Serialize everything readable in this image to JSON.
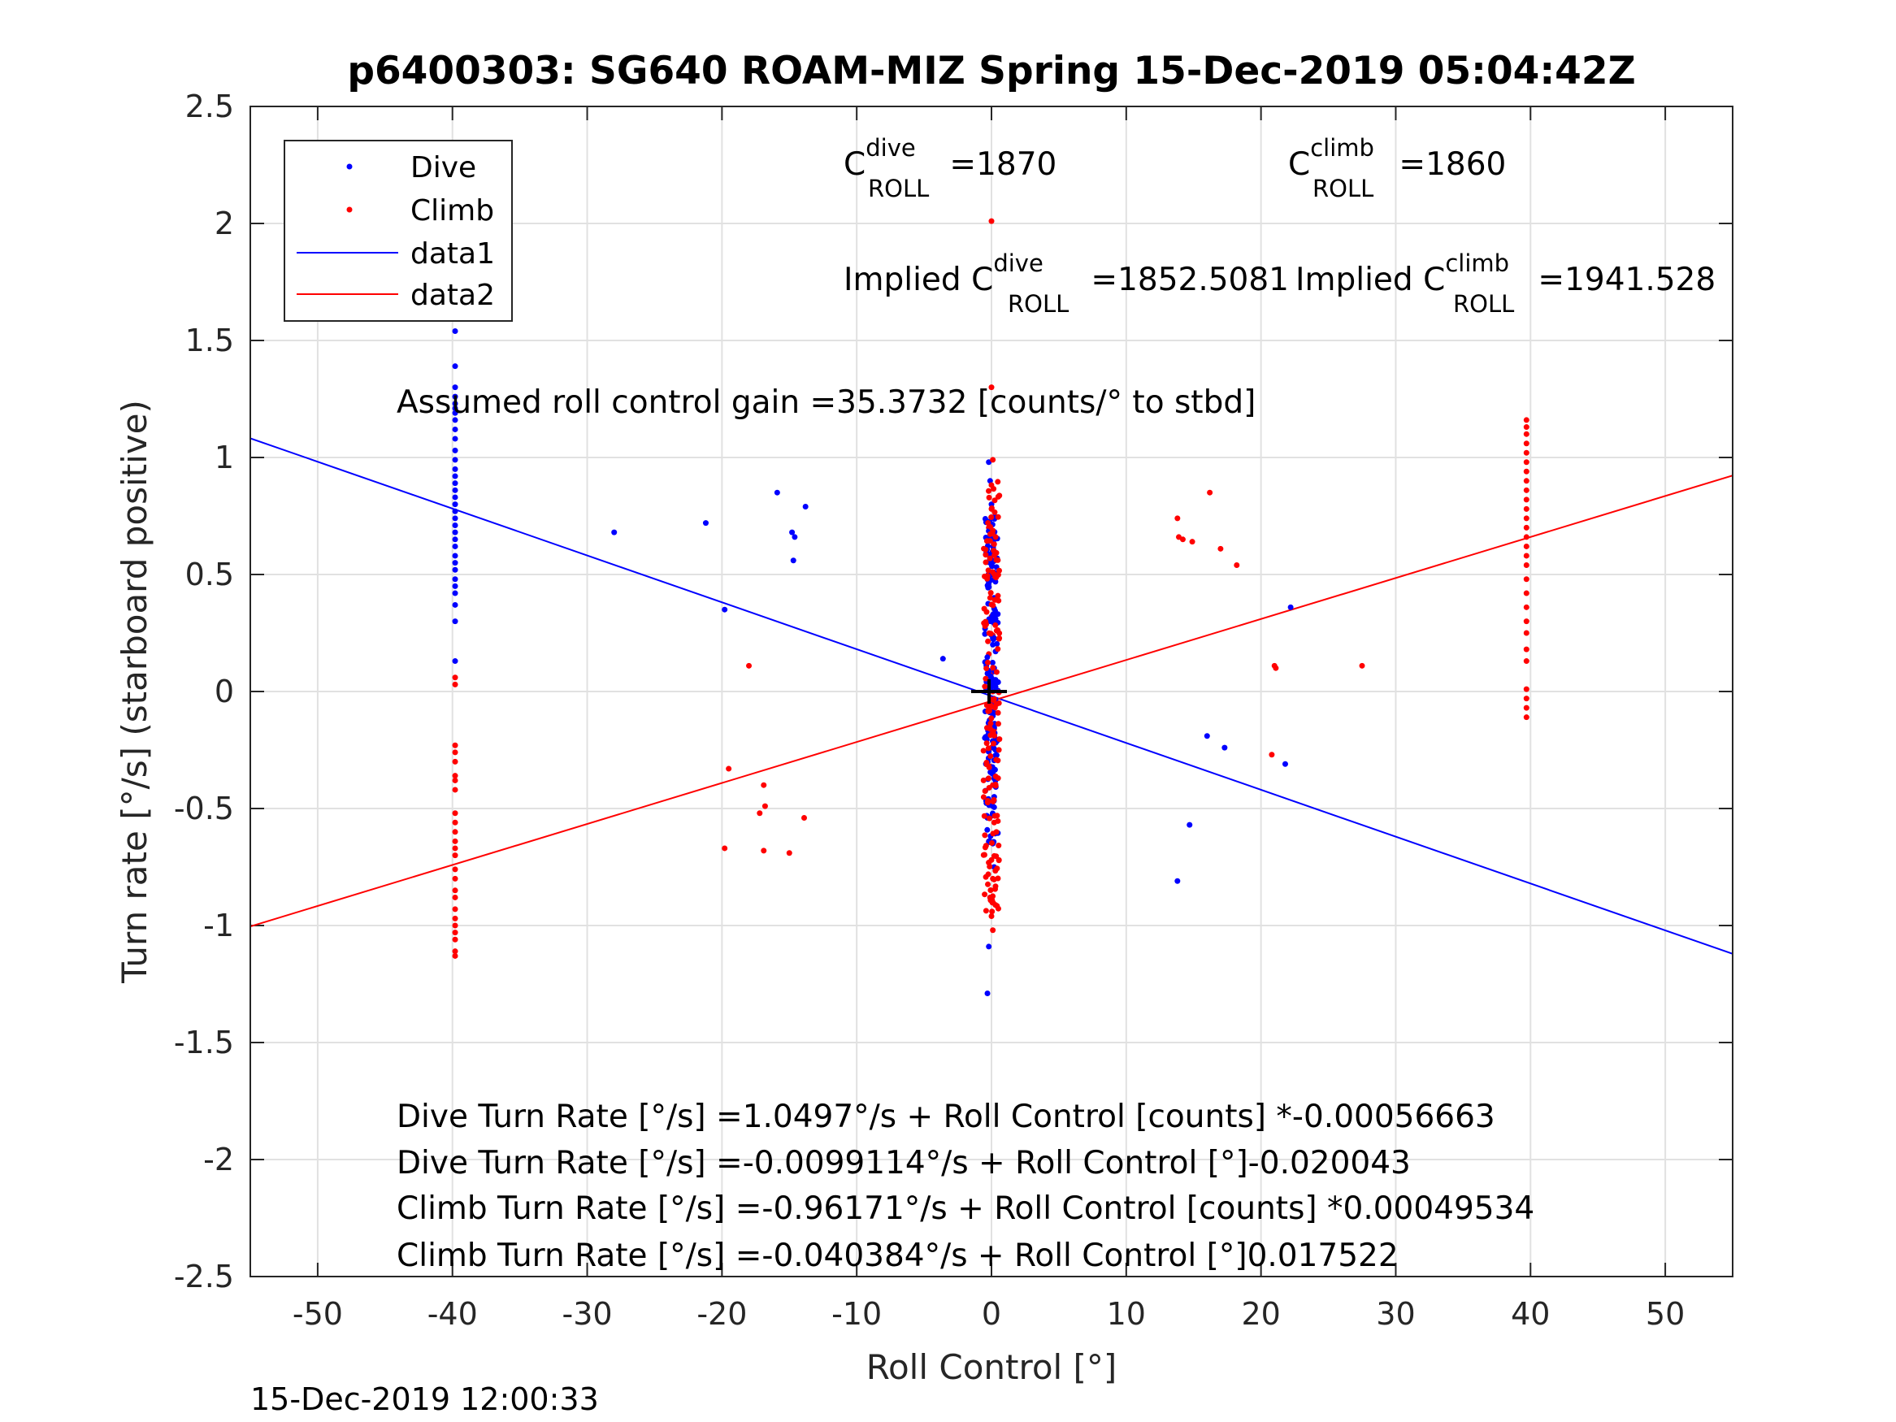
{
  "chart_data": {
    "type": "scatter",
    "title": "p6400303: SG640 ROAM-MIZ Spring 15-Dec-2019 05:04:42Z",
    "xlabel": "Roll Control [°]",
    "ylabel": "Turn rate [°/s] (starboard positive)",
    "xlim": [
      -55,
      55
    ],
    "ylim": [
      -2.5,
      2.5
    ],
    "xticks": [
      -50,
      -40,
      -30,
      -20,
      -10,
      0,
      10,
      20,
      30,
      40,
      50
    ],
    "xtick_labels": [
      "-50",
      "-40",
      "-30",
      "-20",
      "-10",
      "0",
      "10",
      "20",
      "30",
      "40",
      "50"
    ],
    "yticks": [
      -2.5,
      -2,
      -1.5,
      -1,
      -0.5,
      0,
      0.5,
      1,
      1.5,
      2,
      2.5
    ],
    "ytick_labels": [
      "-2.5",
      "-2",
      "-1.5",
      "-1",
      "-0.5",
      "0",
      "0.5",
      "1",
      "1.5",
      "2",
      "2.5"
    ],
    "grid": true,
    "legend_position": "top-left",
    "legend": [
      "Dive",
      "Climb",
      "data1",
      "data2"
    ],
    "colors": {
      "dive": "#0000ff",
      "climb": "#ff0000",
      "marker": "#000000"
    },
    "series": [
      {
        "name": "Dive",
        "kind": "points",
        "points": [
          [
            -39.8,
            1.54
          ],
          [
            -39.8,
            1.39
          ],
          [
            -39.8,
            1.3
          ],
          [
            -39.8,
            1.26
          ],
          [
            -39.8,
            1.23
          ],
          [
            -39.8,
            1.21
          ],
          [
            -39.8,
            1.19
          ],
          [
            -39.8,
            1.16
          ],
          [
            -39.8,
            1.12
          ],
          [
            -39.8,
            1.08
          ],
          [
            -39.8,
            1.03
          ],
          [
            -39.8,
            0.99
          ],
          [
            -39.8,
            0.95
          ],
          [
            -39.8,
            0.92
          ],
          [
            -39.8,
            0.89
          ],
          [
            -39.8,
            0.86
          ],
          [
            -39.8,
            0.83
          ],
          [
            -39.8,
            0.8
          ],
          [
            -39.8,
            0.77
          ],
          [
            -39.8,
            0.74
          ],
          [
            -39.8,
            0.71
          ],
          [
            -39.8,
            0.68
          ],
          [
            -39.8,
            0.65
          ],
          [
            -39.8,
            0.62
          ],
          [
            -39.8,
            0.58
          ],
          [
            -39.8,
            0.55
          ],
          [
            -39.8,
            0.52
          ],
          [
            -39.8,
            0.48
          ],
          [
            -39.8,
            0.45
          ],
          [
            -39.8,
            0.42
          ],
          [
            -39.8,
            0.37
          ],
          [
            -39.8,
            0.3
          ],
          [
            -39.8,
            0.13
          ],
          [
            -28.0,
            0.68
          ],
          [
            -21.2,
            0.72
          ],
          [
            -19.8,
            0.35
          ],
          [
            -15.9,
            0.85
          ],
          [
            -14.8,
            0.68
          ],
          [
            -14.6,
            0.66
          ],
          [
            -14.7,
            0.56
          ],
          [
            -13.8,
            0.79
          ],
          [
            -3.6,
            0.14
          ],
          [
            13.8,
            -0.81
          ],
          [
            14.7,
            -0.57
          ],
          [
            16.0,
            -0.19
          ],
          [
            17.3,
            -0.24
          ],
          [
            21.8,
            -0.31
          ],
          [
            22.2,
            0.36
          ],
          [
            -0.2,
            0.98
          ],
          [
            -0.1,
            0.9
          ],
          [
            0.0,
            0.8
          ],
          [
            -0.1,
            0.7
          ],
          [
            0.1,
            0.6
          ],
          [
            0.0,
            0.5
          ],
          [
            0.2,
            0.4
          ],
          [
            -0.1,
            0.3
          ],
          [
            0.1,
            0.2
          ],
          [
            0.2,
            0.1
          ],
          [
            0.3,
            0.05
          ],
          [
            0.0,
            -0.05
          ],
          [
            -0.2,
            -0.15
          ],
          [
            0.3,
            -0.25
          ],
          [
            0.1,
            -0.35
          ],
          [
            0.2,
            -0.45
          ],
          [
            -0.3,
            -0.54
          ],
          [
            0.1,
            -0.65
          ],
          [
            0.2,
            -0.75
          ],
          [
            -0.1,
            -0.88
          ],
          [
            -0.2,
            -1.09
          ],
          [
            -0.3,
            -1.29
          ]
        ]
      },
      {
        "name": "Climb",
        "kind": "points",
        "points": [
          [
            -39.8,
            0.06
          ],
          [
            -39.8,
            0.03
          ],
          [
            -39.8,
            -0.23
          ],
          [
            -39.8,
            -0.26
          ],
          [
            -39.8,
            -0.3
          ],
          [
            -39.8,
            -0.36
          ],
          [
            -39.8,
            -0.38
          ],
          [
            -39.8,
            -0.42
          ],
          [
            -39.8,
            -0.52
          ],
          [
            -39.8,
            -0.56
          ],
          [
            -39.8,
            -0.6
          ],
          [
            -39.8,
            -0.64
          ],
          [
            -39.8,
            -0.67
          ],
          [
            -39.8,
            -0.7
          ],
          [
            -39.8,
            -0.76
          ],
          [
            -39.8,
            -0.8
          ],
          [
            -39.8,
            -0.85
          ],
          [
            -39.8,
            -0.88
          ],
          [
            -39.8,
            -0.93
          ],
          [
            -39.8,
            -0.97
          ],
          [
            -39.8,
            -1.0
          ],
          [
            -39.8,
            -1.03
          ],
          [
            -39.8,
            -1.06
          ],
          [
            -39.8,
            -1.11
          ],
          [
            -39.8,
            -1.13
          ],
          [
            -18.0,
            0.11
          ],
          [
            -19.8,
            -0.67
          ],
          [
            -19.5,
            -0.33
          ],
          [
            -17.2,
            -0.52
          ],
          [
            -16.8,
            -0.49
          ],
          [
            -16.9,
            -0.4
          ],
          [
            -16.9,
            -0.68
          ],
          [
            -15.0,
            -0.69
          ],
          [
            -13.9,
            -0.54
          ],
          [
            13.8,
            0.74
          ],
          [
            13.9,
            0.66
          ],
          [
            14.2,
            0.65
          ],
          [
            14.9,
            0.64
          ],
          [
            16.2,
            0.85
          ],
          [
            17.0,
            0.61
          ],
          [
            18.2,
            0.54
          ],
          [
            20.8,
            -0.27
          ],
          [
            21.0,
            0.11
          ],
          [
            21.1,
            0.1
          ],
          [
            27.5,
            0.11
          ],
          [
            39.7,
            1.16
          ],
          [
            39.7,
            1.13
          ],
          [
            39.7,
            1.1
          ],
          [
            39.7,
            1.06
          ],
          [
            39.7,
            1.02
          ],
          [
            39.7,
            0.98
          ],
          [
            39.7,
            0.94
          ],
          [
            39.7,
            0.9
          ],
          [
            39.7,
            0.86
          ],
          [
            39.7,
            0.82
          ],
          [
            39.7,
            0.78
          ],
          [
            39.7,
            0.74
          ],
          [
            39.7,
            0.7
          ],
          [
            39.7,
            0.66
          ],
          [
            39.7,
            0.62
          ],
          [
            39.7,
            0.58
          ],
          [
            39.7,
            0.54
          ],
          [
            39.7,
            0.48
          ],
          [
            39.7,
            0.42
          ],
          [
            39.7,
            0.36
          ],
          [
            39.7,
            0.3
          ],
          [
            39.7,
            0.25
          ],
          [
            39.7,
            0.18
          ],
          [
            39.7,
            0.13
          ],
          [
            39.7,
            0.01
          ],
          [
            39.7,
            -0.03
          ],
          [
            39.7,
            -0.07
          ],
          [
            39.7,
            -0.11
          ],
          [
            0.0,
            2.01
          ],
          [
            0.0,
            1.3
          ],
          [
            0.1,
            0.99
          ],
          [
            0.0,
            0.78
          ],
          [
            -0.2,
            0.7
          ],
          [
            0.1,
            0.62
          ],
          [
            -0.1,
            0.55
          ],
          [
            0.2,
            0.48
          ],
          [
            -0.1,
            0.4
          ],
          [
            0.0,
            0.32
          ],
          [
            0.1,
            0.24
          ],
          [
            -0.2,
            0.16
          ],
          [
            0.0,
            0.08
          ],
          [
            0.1,
            0.0
          ],
          [
            -0.1,
            -0.08
          ],
          [
            0.2,
            -0.16
          ],
          [
            0.0,
            -0.24
          ],
          [
            -0.1,
            -0.32
          ],
          [
            0.1,
            -0.4
          ],
          [
            0.0,
            -0.48
          ],
          [
            0.2,
            -0.56
          ],
          [
            -0.2,
            -0.64
          ],
          [
            0.0,
            -0.72
          ],
          [
            0.1,
            -0.8
          ],
          [
            -0.1,
            -0.88
          ],
          [
            0.0,
            -0.96
          ],
          [
            0.1,
            -1.02
          ]
        ]
      },
      {
        "name": "Dive",
        "kind": "dense_band",
        "x_min": -0.5,
        "x_max": 0.5,
        "y_min": -0.65,
        "y_max": 0.75,
        "points_omitted": "dense column of dive samples near 0°"
      },
      {
        "name": "Climb",
        "kind": "dense_band",
        "x_min": -0.6,
        "x_max": 0.6,
        "y_min": -0.95,
        "y_max": 0.9,
        "points_omitted": "dense column of climb samples near 0°"
      },
      {
        "name": "data1",
        "kind": "line",
        "x": [
          -55,
          55
        ],
        "y": [
          1.082,
          -1.121
        ]
      },
      {
        "name": "data2",
        "kind": "line",
        "x": [
          -55,
          55
        ],
        "y": [
          -1.004,
          0.923
        ]
      }
    ],
    "annotations": {
      "c_dive": {
        "base": "C",
        "sup": "dive",
        "sub": "ROLL",
        "text": " =1870"
      },
      "c_climb": {
        "base": "C",
        "sup": "climb",
        "sub": "ROLL",
        "text": " =1860"
      },
      "implied_dive": {
        "prefix": "Implied C",
        "sup": "dive",
        "sub": "ROLL",
        "text": " =1852.5081"
      },
      "implied_climb": {
        "prefix": "Implied C",
        "sup": "climb",
        "sub": "ROLL",
        "text": " =1941.528"
      },
      "gain": "Assumed roll control gain =35.3732 [counts/° to stbd]",
      "eq_lines": [
        "Dive Turn Rate [°/s] =1.0497°/s + Roll Control [counts] *-0.00056663",
        "Dive Turn Rate [°/s] =-0.0099114°/s + Roll Control [°]-0.020043",
        "Climb Turn Rate [°/s] =-0.96171°/s + Roll Control [counts] *0.00049534",
        "Climb Turn Rate [°/s] =-0.040384°/s + Roll Control [°]0.017522"
      ]
    },
    "timestamp": "15-Dec-2019 12:00:33"
  }
}
